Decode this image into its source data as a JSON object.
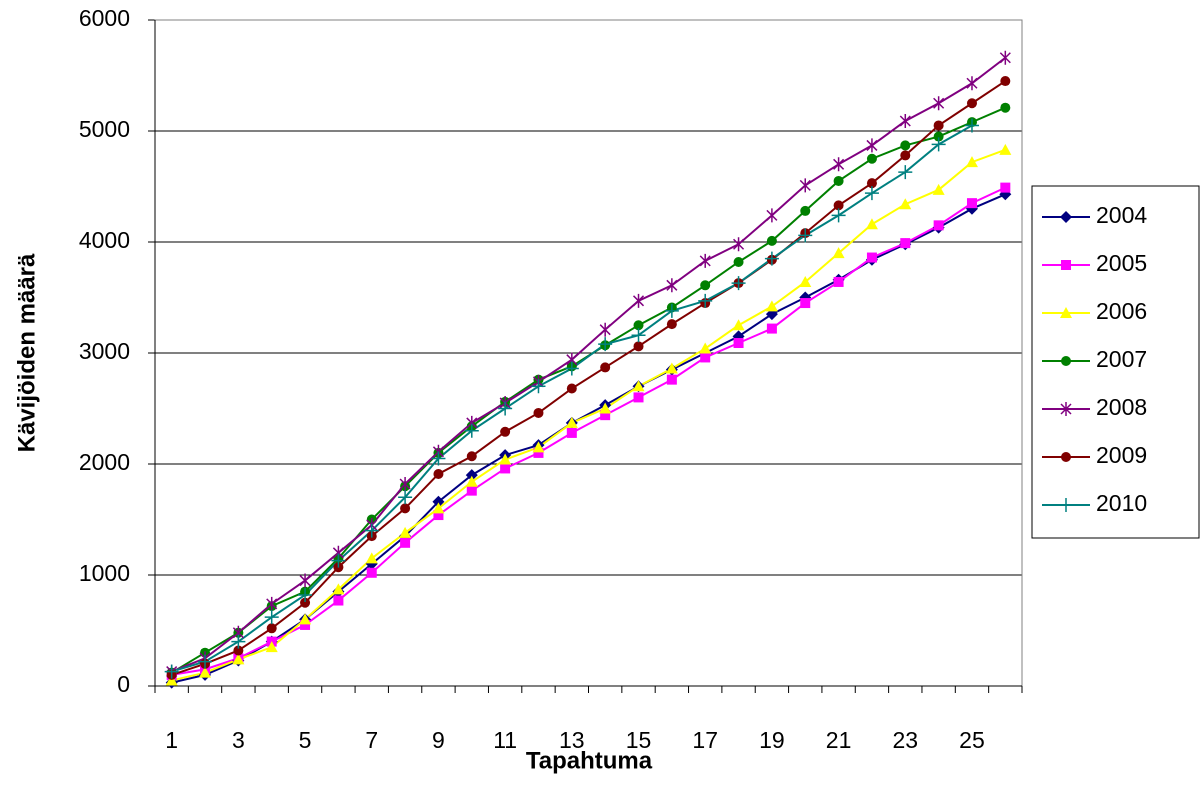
{
  "chart_data": {
    "type": "line",
    "x_label": "Tapahtuma",
    "y_label": "Kävijöiden määrä",
    "categories": [
      "1",
      null,
      "3",
      null,
      "5",
      null,
      "7",
      null,
      "9",
      null,
      "11",
      null,
      "13",
      null,
      "15",
      null,
      "17",
      null,
      "19",
      null,
      "21",
      null,
      "23",
      null,
      "25",
      null
    ],
    "series": [
      {
        "name": "2004",
        "color": "#000080",
        "marker": "diamond",
        "values": [
          30,
          100,
          230,
          400,
          600,
          850,
          1100,
          1350,
          1660,
          1900,
          2080,
          2170,
          2370,
          2530,
          2700,
          2850,
          3000,
          3150,
          3350,
          3500,
          3660,
          3840,
          3980,
          4130,
          4300,
          4430
        ]
      },
      {
        "name": "2005",
        "color": "#ff00ff",
        "marker": "square",
        "values": [
          100,
          150,
          250,
          400,
          550,
          770,
          1020,
          1290,
          1540,
          1760,
          1960,
          2100,
          2280,
          2440,
          2600,
          2760,
          2960,
          3090,
          3220,
          3450,
          3640,
          3860,
          3990,
          4150,
          4350,
          4490
        ]
      },
      {
        "name": "2006",
        "color": "#ffff00",
        "marker": "triangle",
        "values": [
          50,
          120,
          240,
          350,
          600,
          870,
          1150,
          1380,
          1600,
          1840,
          2040,
          2150,
          2370,
          2500,
          2700,
          2860,
          3040,
          3250,
          3420,
          3640,
          3900,
          4160,
          4340,
          4470,
          4720,
          4830
        ]
      },
      {
        "name": "2007",
        "color": "#008000",
        "marker": "circle",
        "values": [
          120,
          300,
          480,
          720,
          850,
          1150,
          1500,
          1800,
          2100,
          2340,
          2560,
          2760,
          2880,
          3070,
          3250,
          3410,
          3610,
          3820,
          4010,
          4280,
          4550,
          4750,
          4870,
          4950,
          5080,
          5210
        ]
      },
      {
        "name": "2008",
        "color": "#800080",
        "marker": "star",
        "values": [
          130,
          250,
          480,
          740,
          950,
          1200,
          1450,
          1820,
          2110,
          2370,
          2550,
          2740,
          2940,
          3210,
          3470,
          3610,
          3830,
          3980,
          4240,
          4510,
          4700,
          4870,
          5090,
          5250,
          5430,
          5660
        ]
      },
      {
        "name": "2009",
        "color": "#800000",
        "marker": "circle",
        "values": [
          100,
          200,
          320,
          520,
          750,
          1070,
          1350,
          1600,
          1910,
          2070,
          2290,
          2460,
          2680,
          2870,
          3060,
          3260,
          3450,
          3630,
          3840,
          4080,
          4330,
          4530,
          4780,
          5050,
          5250,
          5450
        ]
      },
      {
        "name": "2010",
        "color": "#008080",
        "marker": "plus",
        "values": [
          130,
          220,
          400,
          620,
          820,
          1130,
          1400,
          1700,
          2050,
          2300,
          2500,
          2700,
          2860,
          3080,
          3160,
          3380,
          3470,
          3630,
          3850,
          4060,
          4240,
          4440,
          4630,
          4880,
          5050,
          null
        ]
      }
    ],
    "ylim": [
      0,
      6000
    ],
    "yticks": [
      0,
      1000,
      2000,
      3000,
      4000,
      5000,
      6000
    ],
    "grid": true,
    "legend": "right"
  }
}
